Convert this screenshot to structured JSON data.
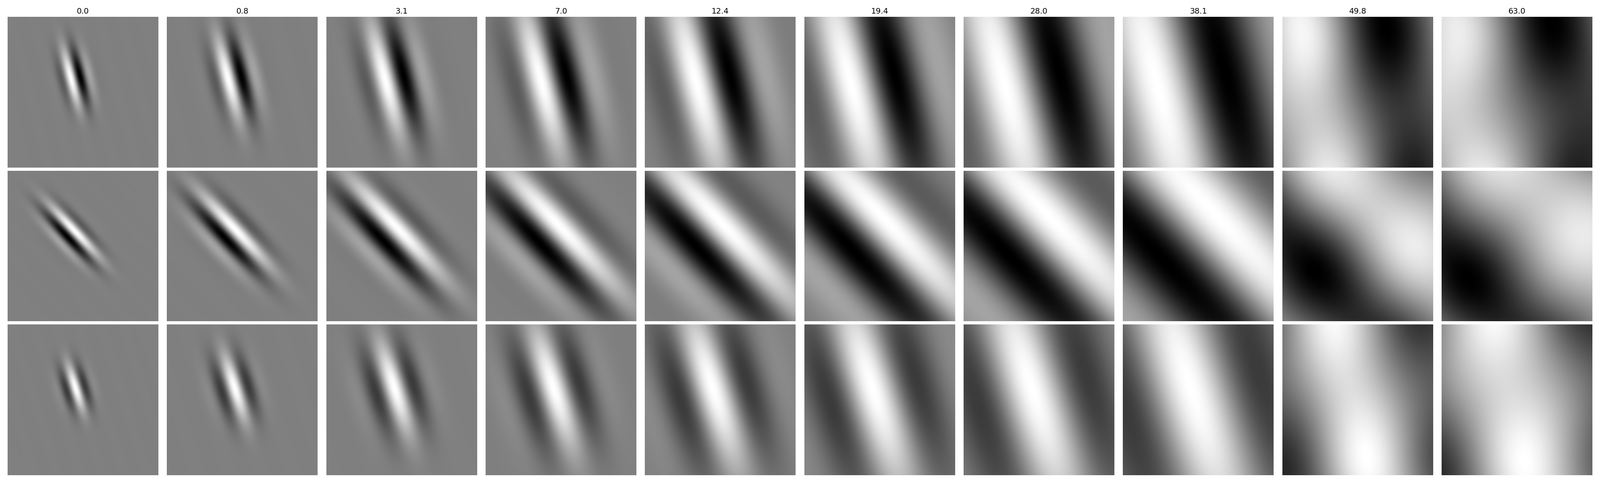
{
  "chart_data": {
    "type": "image_grid",
    "titles": [
      "0.0",
      "0.8",
      "3.1",
      "7.0",
      "12.4",
      "19.4",
      "28.0",
      "38.1",
      "49.8",
      "63.0"
    ],
    "rows": 3,
    "color": "gray",
    "tick_labels": false
  }
}
